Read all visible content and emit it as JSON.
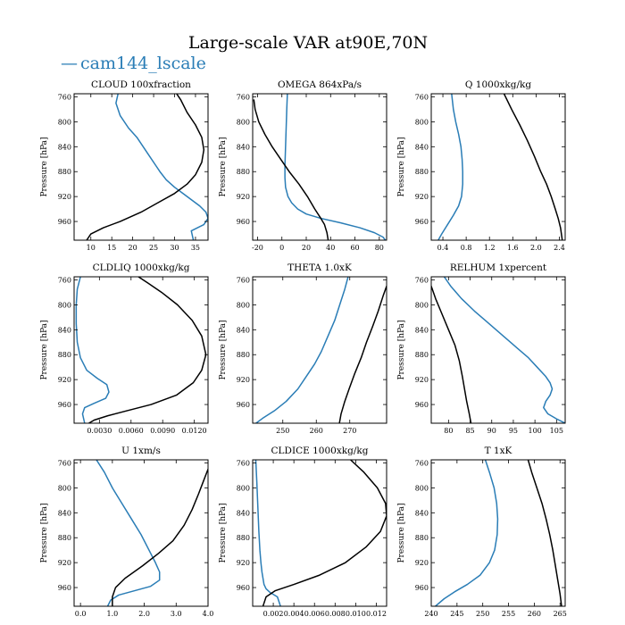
{
  "figure": {
    "title": "Large-scale VAR at90E,70N",
    "legend_label": "cam144_lscale",
    "legend_symbol": "—",
    "colors": {
      "series_blue": "#2a7db6",
      "series_black": "#000000",
      "axes": "#000000"
    }
  },
  "chart_data": [
    {
      "type": "line",
      "title": "CLOUD  100xfraction",
      "ylabel": "Pressure [hPa]",
      "xlim": [
        6,
        38
      ],
      "xticks": [
        10,
        15,
        20,
        25,
        30,
        35
      ],
      "xtick_labels": [
        "10",
        "15",
        "20",
        "25",
        "30",
        "35"
      ],
      "ylim": [
        990,
        755
      ],
      "yticks": [
        760,
        800,
        840,
        880,
        920,
        960
      ],
      "ytick_labels": [
        "760",
        "800",
        "840",
        "880",
        "920",
        "960"
      ],
      "series": [
        {
          "name": "cam144_lscale",
          "color": "#2a7db6",
          "x": [
            16.5,
            16,
            17,
            19,
            21,
            22.5,
            24,
            25.5,
            26.5,
            28,
            30,
            32,
            34,
            36,
            37.5,
            38,
            37,
            34,
            34.5
          ],
          "y": [
            755,
            770,
            790,
            810,
            825,
            840,
            855,
            870,
            880,
            893,
            905,
            915,
            925,
            935,
            945,
            955,
            965,
            975,
            990
          ]
        },
        {
          "name": "black",
          "color": "#000000",
          "x": [
            30.5,
            31.5,
            33,
            35,
            36.5,
            37,
            36.5,
            35,
            33,
            30,
            26,
            22,
            17,
            13,
            10,
            9
          ],
          "y": [
            755,
            765,
            785,
            805,
            825,
            845,
            865,
            885,
            900,
            915,
            930,
            945,
            960,
            970,
            980,
            990
          ]
        }
      ]
    },
    {
      "type": "line",
      "title": "OMEGA  864xPa/s",
      "ylabel": "Pressure [hPa]",
      "xlim": [
        -24,
        86
      ],
      "xticks": [
        -20,
        0,
        20,
        40,
        60,
        80
      ],
      "xtick_labels": [
        "-20",
        "0",
        "20",
        "40",
        "60",
        "80"
      ],
      "ylim": [
        990,
        755
      ],
      "yticks": [
        760,
        800,
        840,
        880,
        920,
        960
      ],
      "ytick_labels": [
        "760",
        "800",
        "840",
        "880",
        "920",
        "960"
      ],
      "series": [
        {
          "name": "cam144_lscale",
          "color": "#2a7db6",
          "x": [
            4.5,
            4,
            3.5,
            3,
            2.5,
            2.5,
            3,
            5,
            8,
            13,
            20,
            32,
            48,
            64,
            76,
            83,
            85
          ],
          "y": [
            755,
            780,
            810,
            840,
            870,
            890,
            905,
            920,
            930,
            940,
            948,
            955,
            962,
            970,
            978,
            985,
            990
          ]
        },
        {
          "name": "black",
          "color": "#000000",
          "x": [
            -23,
            -22,
            -19,
            -14,
            -8,
            -1,
            6,
            14,
            21,
            27,
            32,
            35,
            37,
            38
          ],
          "y": [
            765,
            780,
            800,
            820,
            840,
            860,
            880,
            900,
            920,
            940,
            955,
            965,
            978,
            990
          ]
        }
      ]
    },
    {
      "type": "line",
      "title": "Q  1000xkg/kg",
      "ylabel": "Pressure [hPa]",
      "xlim": [
        0.2,
        2.5
      ],
      "xticks": [
        0.4,
        0.8,
        1.2,
        1.6,
        2.0,
        2.4
      ],
      "xtick_labels": [
        "0.4",
        "0.8",
        "1.2",
        "1.6",
        "2.0",
        "2.4"
      ],
      "ylim": [
        990,
        755
      ],
      "yticks": [
        760,
        800,
        840,
        880,
        920,
        960
      ],
      "ytick_labels": [
        "760",
        "800",
        "840",
        "880",
        "920",
        "960"
      ],
      "series": [
        {
          "name": "cam144_lscale",
          "color": "#2a7db6",
          "x": [
            0.55,
            0.58,
            0.62,
            0.67,
            0.71,
            0.73,
            0.74,
            0.74,
            0.72,
            0.67,
            0.58,
            0.48,
            0.38,
            0.32
          ],
          "y": [
            755,
            780,
            800,
            820,
            840,
            860,
            880,
            900,
            920,
            935,
            950,
            965,
            980,
            990
          ]
        },
        {
          "name": "black",
          "color": "#000000",
          "x": [
            1.45,
            1.58,
            1.72,
            1.85,
            1.97,
            2.08,
            2.18,
            2.26,
            2.33,
            2.38,
            2.42,
            2.45
          ],
          "y": [
            755,
            780,
            805,
            830,
            855,
            880,
            900,
            920,
            940,
            955,
            970,
            990
          ]
        }
      ]
    },
    {
      "type": "line",
      "title": "CLDLIQ  1000xkg/kg",
      "ylabel": "Pressure [hPa]",
      "xlim": [
        0.0006,
        0.0133
      ],
      "xticks": [
        0.003,
        0.006,
        0.009,
        0.012
      ],
      "xtick_labels": [
        "0.0030",
        "0.0060",
        "0.0090",
        "0.0120"
      ],
      "ylim": [
        990,
        755
      ],
      "yticks": [
        760,
        800,
        840,
        880,
        920,
        960
      ],
      "ytick_labels": [
        "760",
        "800",
        "840",
        "880",
        "920",
        "960"
      ],
      "series": [
        {
          "name": "cam144_lscale",
          "color": "#2a7db6",
          "x": [
            0.0012,
            0.0009,
            0.0008,
            0.0008,
            0.0009,
            0.0012,
            0.0018,
            0.0028,
            0.0037,
            0.0039,
            0.0036,
            0.0025,
            0.0016,
            0.0014,
            0.0016
          ],
          "y": [
            755,
            775,
            800,
            830,
            860,
            885,
            905,
            918,
            928,
            940,
            950,
            958,
            965,
            975,
            990
          ]
        },
        {
          "name": "black",
          "color": "#000000",
          "x": [
            0.0067,
            0.0076,
            0.0089,
            0.0104,
            0.0118,
            0.0127,
            0.0131,
            0.0127,
            0.0119,
            0.0103,
            0.0079,
            0.0056,
            0.0038,
            0.0025,
            0.002
          ],
          "y": [
            755,
            765,
            780,
            800,
            825,
            850,
            880,
            905,
            925,
            945,
            960,
            970,
            978,
            985,
            990
          ]
        }
      ]
    },
    {
      "type": "line",
      "title": "THETA  1.0xK",
      "ylabel": "Pressure [hPa]",
      "xlim": [
        241,
        281
      ],
      "xticks": [
        250,
        260,
        270
      ],
      "xtick_labels": [
        "250",
        "260",
        "270"
      ],
      "ylim": [
        990,
        755
      ],
      "yticks": [
        760,
        800,
        840,
        880,
        920,
        960
      ],
      "ytick_labels": [
        "760",
        "800",
        "840",
        "880",
        "920",
        "960"
      ],
      "series": [
        {
          "name": "cam144_lscale",
          "color": "#2a7db6",
          "x": [
            269.5,
            268.5,
            267,
            265.5,
            263.5,
            261.5,
            259.5,
            257,
            254.5,
            251,
            247.5,
            244,
            242
          ],
          "y": [
            755,
            775,
            800,
            825,
            850,
            875,
            895,
            915,
            935,
            955,
            970,
            982,
            990
          ]
        },
        {
          "name": "black",
          "color": "#000000",
          "x": [
            281,
            280,
            278.5,
            276.8,
            275,
            273.4,
            271.5,
            269.8,
            268.5,
            267.4,
            266.9
          ],
          "y": [
            770,
            785,
            810,
            835,
            860,
            885,
            910,
            935,
            955,
            975,
            990
          ]
        }
      ]
    },
    {
      "type": "line",
      "title": "RELHUM  1xpercent",
      "ylabel": "Pressure [hPa]",
      "xlim": [
        76,
        107
      ],
      "xticks": [
        80,
        85,
        90,
        95,
        100,
        105
      ],
      "xtick_labels": [
        "80",
        "85",
        "90",
        "95",
        "100",
        "105"
      ],
      "ylim": [
        990,
        755
      ],
      "yticks": [
        760,
        800,
        840,
        880,
        920,
        960
      ],
      "ytick_labels": [
        "760",
        "800",
        "840",
        "880",
        "920",
        "960"
      ],
      "series": [
        {
          "name": "cam144_lscale",
          "color": "#2a7db6",
          "x": [
            79,
            80.5,
            83,
            86,
            88.5,
            91,
            93.5,
            96,
            98.5,
            100.5,
            102.5,
            103.5,
            104,
            103.5,
            102.5,
            102,
            103,
            105,
            107
          ],
          "y": [
            755,
            770,
            790,
            810,
            825,
            840,
            855,
            870,
            885,
            900,
            915,
            925,
            935,
            945,
            955,
            965,
            975,
            983,
            990
          ]
        },
        {
          "name": "black",
          "color": "#000000",
          "x": [
            76,
            77,
            78.5,
            80,
            81.5,
            82.5,
            83.2,
            83.7,
            84.2,
            84.8,
            85.2
          ],
          "y": [
            770,
            790,
            815,
            840,
            865,
            890,
            915,
            935,
            955,
            975,
            990
          ]
        }
      ]
    },
    {
      "type": "line",
      "title": "U  1xm/s",
      "ylabel": "Pressure [hPa]",
      "xlim": [
        -0.2,
        4.0
      ],
      "xticks": [
        0.0,
        1.0,
        2.0,
        3.0,
        4.0
      ],
      "xtick_labels": [
        "0.0",
        "1.0",
        "2.0",
        "3.0",
        "4.0"
      ],
      "ylim": [
        990,
        755
      ],
      "yticks": [
        760,
        800,
        840,
        880,
        920,
        960
      ],
      "ytick_labels": [
        "760",
        "800",
        "840",
        "880",
        "920",
        "960"
      ],
      "series": [
        {
          "name": "cam144_lscale",
          "color": "#2a7db6",
          "x": [
            0.5,
            0.75,
            1.0,
            1.3,
            1.6,
            1.9,
            2.15,
            2.35,
            2.48,
            2.48,
            2.2,
            1.7,
            1.2,
            0.95,
            0.85
          ],
          "y": [
            755,
            775,
            800,
            825,
            850,
            875,
            900,
            920,
            935,
            948,
            958,
            965,
            972,
            980,
            990
          ]
        },
        {
          "name": "black",
          "color": "#000000",
          "x": [
            4.0,
            3.85,
            3.7,
            3.5,
            3.25,
            2.9,
            2.45,
            1.95,
            1.4,
            1.1,
            1.0,
            1.0
          ],
          "y": [
            770,
            790,
            810,
            835,
            860,
            885,
            905,
            925,
            945,
            960,
            975,
            990
          ]
        }
      ]
    },
    {
      "type": "line",
      "title": "CLDICE  1000xkg/kg",
      "ylabel": "Pressure [hPa]",
      "xlim": [
        0.0,
        0.013
      ],
      "xticks": [
        0.002,
        0.004,
        0.006,
        0.008,
        0.01,
        0.012
      ],
      "xtick_labels": [
        "0.002",
        "0.004",
        "0.006",
        "0.008",
        "0.010",
        "0.012"
      ],
      "ylim": [
        990,
        755
      ],
      "yticks": [
        760,
        800,
        840,
        880,
        920,
        960
      ],
      "ytick_labels": [
        "760",
        "800",
        "840",
        "880",
        "920",
        "960"
      ],
      "series": [
        {
          "name": "cam144_lscale",
          "color": "#2a7db6",
          "x": [
            0.0003,
            0.0004,
            0.0005,
            0.0006,
            0.0007,
            0.0008,
            0.0009,
            0.001,
            0.0011,
            0.0013,
            0.0017,
            0.0024,
            0.0027
          ],
          "y": [
            755,
            790,
            830,
            870,
            900,
            920,
            935,
            945,
            955,
            962,
            968,
            975,
            990
          ]
        },
        {
          "name": "black",
          "color": "#000000",
          "x": [
            0.0095,
            0.0108,
            0.0121,
            0.0129,
            0.013,
            0.0124,
            0.011,
            0.009,
            0.0065,
            0.004,
            0.0022,
            0.0013,
            0.001
          ],
          "y": [
            755,
            775,
            800,
            825,
            845,
            870,
            895,
            920,
            940,
            955,
            965,
            975,
            990
          ]
        }
      ]
    },
    {
      "type": "line",
      "title": "T  1xK",
      "ylabel": "Pressure [hPa]",
      "xlim": [
        240,
        266
      ],
      "xticks": [
        240,
        245,
        250,
        255,
        260,
        265
      ],
      "xtick_labels": [
        "240",
        "245",
        "250",
        "255",
        "260",
        "265"
      ],
      "ylim": [
        990,
        755
      ],
      "yticks": [
        760,
        800,
        840,
        880,
        920,
        960
      ],
      "ytick_labels": [
        "760",
        "800",
        "840",
        "880",
        "920",
        "960"
      ],
      "series": [
        {
          "name": "cam144_lscale",
          "color": "#2a7db6",
          "x": [
            250.5,
            251.3,
            252.2,
            252.7,
            252.9,
            252.8,
            252.3,
            251.3,
            249.5,
            247,
            244.5,
            242.5,
            240.8
          ],
          "y": [
            755,
            775,
            800,
            825,
            850,
            875,
            900,
            920,
            940,
            955,
            967,
            978,
            990
          ]
        },
        {
          "name": "black",
          "color": "#000000",
          "x": [
            258.8,
            259.5,
            260.5,
            261.5,
            262.3,
            263,
            263.6,
            264.1,
            264.6,
            265,
            265.3
          ],
          "y": [
            755,
            775,
            800,
            825,
            850,
            875,
            900,
            925,
            950,
            970,
            990
          ]
        }
      ]
    }
  ]
}
